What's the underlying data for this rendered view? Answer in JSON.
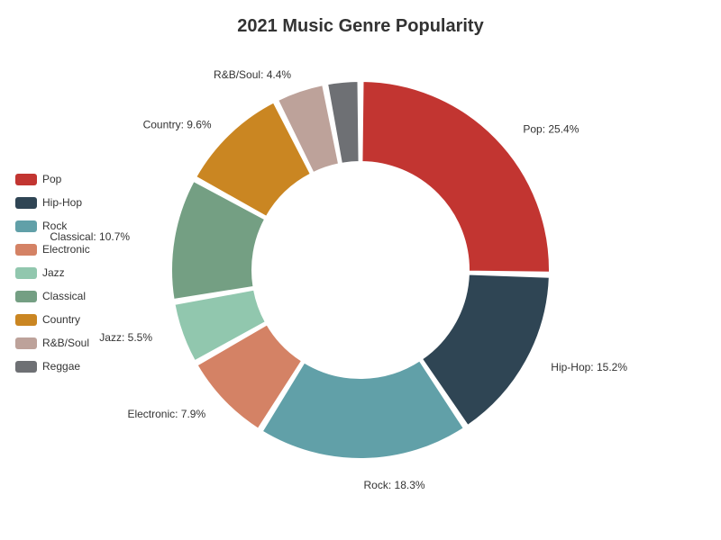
{
  "chart_data": {
    "type": "pie",
    "title": "2021 Music Genre Popularity",
    "categories": [
      "Pop",
      "Hip-Hop",
      "Rock",
      "Electronic",
      "Jazz",
      "Classical",
      "Country",
      "R&B/Soul",
      "Reggae"
    ],
    "values": [
      25.4,
      15.2,
      18.3,
      7.9,
      5.5,
      10.7,
      9.6,
      4.4,
      3.0
    ],
    "labels": [
      "Pop: 25.4%",
      "Hip-Hop: 15.2%",
      "Rock: 18.3%",
      "Electronic: 7.9%",
      "Jazz: 5.5%",
      "Classical: 10.7%",
      "Country: 9.6%",
      "R&B/Soul: 4.4%",
      ""
    ],
    "colors": [
      "#c23531",
      "#2f4554",
      "#61a0a8",
      "#d48265",
      "#91c7ae",
      "#749f83",
      "#ca8622",
      "#bda29a",
      "#6e7074"
    ],
    "legend_position": "left",
    "donut": true
  }
}
